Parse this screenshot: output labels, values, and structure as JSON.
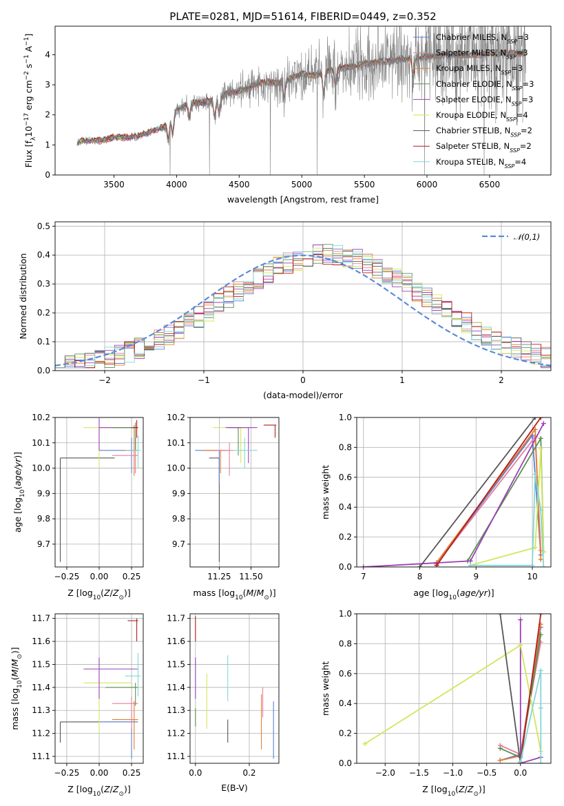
{
  "figure": {
    "title": "PLATE=0281, MJD=51614, FIBERID=0449, z=0.352"
  },
  "colors": {
    "Chabrier MILES": "#5b7fd6",
    "Salpeter MILES": "#e87e9b",
    "Kroupa MILES": "#e67b2e",
    "Chabrier ELODIE": "#5a8f4e",
    "Salpeter ELODIE": "#9b3fb5",
    "Kroupa ELODIE": "#d2e65a",
    "Chabrier STELIB": "#555555",
    "Salpeter STELIB": "#b01e1e",
    "Kroupa STELIB": "#82d6d6",
    "data": "#808080"
  },
  "chart_data": [
    {
      "id": "spectrum",
      "type": "line",
      "title": "PLATE=0281, MJD=51614, FIBERID=0449, z=0.352",
      "xlabel": "wavelength [Angstrom, rest frame]",
      "ylabel": "Flux [f_λ 10^-17 erg cm^-2 s^-1 A^-1]",
      "xlim": [
        3030,
        6990
      ],
      "ylim": [
        0,
        4.95
      ],
      "xticks": [
        3500,
        4000,
        4500,
        5000,
        5500,
        6000,
        6500
      ],
      "yticks": [
        0,
        1,
        2,
        3,
        4
      ],
      "grid": false,
      "legend_position": "upper-right",
      "legend": [
        {
          "name": "Chabrier MILES",
          "nssp": "3"
        },
        {
          "name": "Salpeter MILES",
          "nssp": "3"
        },
        {
          "name": "Kroupa MILES",
          "nssp": "3"
        },
        {
          "name": "Chabrier ELODIE",
          "nssp": "3"
        },
        {
          "name": "Salpeter ELODIE",
          "nssp": "3"
        },
        {
          "name": "Kroupa ELODIE",
          "nssp": "4"
        },
        {
          "name": "Chabrier STELIB",
          "nssp": "2"
        },
        {
          "name": "Salpeter STELIB",
          "nssp": "2"
        },
        {
          "name": "Kroupa STELIB",
          "nssp": "4"
        }
      ],
      "continuum": {
        "x": [
          3200,
          3300,
          3400,
          3500,
          3600,
          3700,
          3800,
          3900,
          4000,
          4100,
          4200,
          4300,
          4400,
          4500,
          4600,
          4700,
          4800,
          4900,
          5000,
          5100,
          5200,
          5300,
          5400,
          5500,
          5600,
          5700,
          5800,
          5900,
          6000,
          6100,
          6200,
          6300,
          6400,
          6500,
          6600,
          6700,
          6800
        ],
        "y": [
          1.1,
          1.15,
          1.15,
          1.25,
          1.25,
          1.3,
          1.45,
          1.6,
          2.15,
          2.4,
          2.4,
          2.5,
          2.7,
          2.8,
          2.95,
          3.1,
          3.05,
          3.2,
          3.35,
          3.3,
          3.45,
          3.55,
          3.6,
          3.7,
          3.75,
          3.8,
          3.85,
          3.9,
          3.95,
          3.95,
          4.0,
          4.0,
          4.0,
          4.05,
          4.05,
          4.05,
          4.05
        ]
      }
    },
    {
      "id": "residuals",
      "type": "line",
      "xlabel": "(data-model)/error",
      "ylabel": "Normed distribution",
      "xlim": [
        -2.5,
        2.5
      ],
      "ylim": [
        0,
        0.515
      ],
      "xticks": [
        -2,
        -1,
        0,
        1,
        2
      ],
      "yticks": [
        0.0,
        0.1,
        0.2,
        0.3,
        0.4,
        0.5
      ],
      "grid": true,
      "legend_position": "upper-right",
      "gaussian_label": "𝒩(0,1)",
      "bins": [
        -2.5,
        2.5,
        50
      ]
    },
    {
      "id": "age-vs-Z",
      "type": "scatter",
      "xlabel": "Z [log10(Z/Z⊙)]",
      "ylabel": "age [log10(age/yr)]",
      "xlim": [
        -0.34,
        0.34
      ],
      "ylim": [
        9.61,
        10.2
      ],
      "xticks": [
        -0.25,
        0.0,
        0.25
      ],
      "yticks": [
        9.7,
        9.8,
        9.9,
        10.0,
        10.1,
        10.2
      ],
      "grid": true,
      "points": [
        {
          "model": "Chabrier MILES",
          "x": 0.29,
          "y": 10.07,
          "xerr": [
            0.0,
            0.0
          ],
          "yerr": [
            0.0,
            0.0
          ]
        },
        {
          "model": "Chabrier STELIB",
          "x": -0.3,
          "y": 10.04,
          "xerr": [
            0.0,
            0.0
          ],
          "yerr": [
            0.0,
            0.0
          ]
        },
        {
          "model": "Salpeter ELODIE",
          "x": 0.0,
          "y": 10.16,
          "xerr": [
            0.0,
            0.0
          ],
          "yerr": [
            0.0,
            0.0
          ]
        },
        {
          "model": "Kroupa ELODIE",
          "x": 0.3,
          "y": 10.16,
          "xerr": [
            0.0,
            0.0
          ],
          "yerr": [
            0.0,
            0.0
          ]
        },
        {
          "model": "Salpeter STELIB",
          "x": 0.3,
          "y": 10.17,
          "xerr": [
            0.0,
            0.0
          ],
          "yerr": [
            0.0,
            0.0
          ]
        }
      ]
    },
    {
      "id": "age-vs-mass",
      "type": "scatter",
      "xlabel": "mass [log10(M/M⊙)]",
      "ylabel": "",
      "xlim": [
        11.02,
        11.72
      ],
      "ylim": [
        9.61,
        10.2
      ],
      "xticks": [
        11.25,
        11.5
      ],
      "yticks": [
        9.7,
        9.8,
        9.9,
        10.0,
        10.1,
        10.2
      ],
      "grid": true
    },
    {
      "id": "weight-vs-age",
      "type": "line",
      "xlabel": "age [log10(age/yr)]",
      "ylabel": "mass weight",
      "xlim": [
        6.88,
        10.33
      ],
      "ylim": [
        0,
        1.0
      ],
      "xticks": [
        7,
        8,
        9,
        10
      ],
      "yticks": [
        0.0,
        0.2,
        0.4,
        0.6,
        0.8,
        1.0
      ],
      "grid": true,
      "series": [
        {
          "model": "Chabrier MILES",
          "x": [
            8.3,
            10.0,
            10.15
          ],
          "y": [
            0.02,
            0.88,
            0.08
          ]
        },
        {
          "model": "Salpeter MILES",
          "x": [
            8.3,
            10.05,
            10.15
          ],
          "y": [
            0.02,
            0.87,
            0.11
          ]
        },
        {
          "model": "Kroupa MILES",
          "x": [
            8.3,
            10.05,
            10.15
          ],
          "y": [
            0.03,
            0.92,
            0.05
          ]
        },
        {
          "model": "Chabrier ELODIE",
          "x": [
            8.85,
            10.15,
            10.2
          ],
          "y": [
            0.04,
            0.86,
            0.1
          ]
        },
        {
          "model": "Salpeter ELODIE",
          "x": [
            7.0,
            8.9,
            10.2
          ],
          "y": [
            0.0,
            0.04,
            0.96
          ]
        },
        {
          "model": "Kroupa ELODIE",
          "x": [
            8.9,
            10.05,
            10.15,
            10.2
          ],
          "y": [
            0.01,
            0.13,
            0.79,
            0.1
          ]
        },
        {
          "model": "Chabrier STELIB",
          "x": [
            8.0,
            10.05
          ],
          "y": [
            0.0,
            1.0
          ]
        },
        {
          "model": "Salpeter STELIB",
          "x": [
            8.3,
            10.15
          ],
          "y": [
            0.01,
            1.0
          ]
        },
        {
          "model": "Kroupa STELIB",
          "x": [
            8.9,
            10.0,
            10.05,
            10.15,
            10.2
          ],
          "y": [
            0.01,
            0.01,
            0.62,
            0.38,
            0.0
          ]
        }
      ]
    },
    {
      "id": "mass-vs-Z",
      "type": "scatter",
      "xlabel": "Z [log10(Z/Z⊙)]",
      "ylabel": "mass [log10(M/M⊙)]",
      "xlim": [
        -0.34,
        0.34
      ],
      "ylim": [
        11.07,
        11.72
      ],
      "xticks": [
        -0.25,
        0.0,
        0.25
      ],
      "yticks": [
        11.1,
        11.2,
        11.3,
        11.4,
        11.5,
        11.6,
        11.7
      ],
      "grid": true
    },
    {
      "id": "mass-vs-ebv",
      "type": "scatter",
      "xlabel": "E(B-V)",
      "ylabel": "",
      "xlim": [
        -0.02,
        0.31
      ],
      "ylim": [
        11.07,
        11.72
      ],
      "xticks": [
        0.0,
        0.2
      ],
      "yticks": [
        11.1,
        11.2,
        11.3,
        11.4,
        11.5,
        11.6,
        11.7
      ],
      "grid": true
    },
    {
      "id": "weight-vs-Z",
      "type": "line",
      "xlabel": "Z [log10(Z/Z⊙)]",
      "ylabel": "mass weight",
      "xlim": [
        -2.42,
        0.45
      ],
      "ylim": [
        0,
        1.0
      ],
      "xticks": [
        -2.0,
        -1.5,
        -1.0,
        -0.5,
        0.0
      ],
      "yticks": [
        0.0,
        0.2,
        0.4,
        0.6,
        0.8,
        1.0
      ],
      "grid": true,
      "series": [
        {
          "model": "Chabrier MILES",
          "x": [
            -0.3,
            0.0,
            0.3
          ],
          "y": [
            0.02,
            0.06,
            0.91
          ]
        },
        {
          "model": "Salpeter MILES",
          "x": [
            -0.3,
            0.0,
            0.3
          ],
          "y": [
            0.12,
            0.06,
            0.81
          ]
        },
        {
          "model": "Kroupa MILES",
          "x": [
            -0.3,
            0.0,
            0.3
          ],
          "y": [
            0.02,
            0.05,
            0.93
          ]
        },
        {
          "model": "Chabrier ELODIE",
          "x": [
            -0.3,
            0.0,
            0.3
          ],
          "y": [
            0.1,
            0.04,
            0.86
          ]
        },
        {
          "model": "Salpeter ELODIE",
          "x": [
            0.0,
            0.0,
            0.3
          ],
          "y": [
            0.96,
            0.0,
            0.04
          ]
        },
        {
          "model": "Kroupa ELODIE",
          "x": [
            -2.3,
            0.0,
            0.3
          ],
          "y": [
            0.13,
            0.79,
            0.08
          ]
        },
        {
          "model": "Chabrier STELIB",
          "x": [
            -0.3,
            0.0
          ],
          "y": [
            1.0,
            0.0
          ]
        },
        {
          "model": "Salpeter STELIB",
          "x": [
            0.0,
            0.3
          ],
          "y": [
            0.0,
            1.0
          ]
        },
        {
          "model": "Kroupa STELIB",
          "x": [
            0.0,
            0.3,
            0.3,
            0.3
          ],
          "y": [
            0.01,
            0.62,
            0.37,
            0.0
          ]
        }
      ]
    }
  ]
}
